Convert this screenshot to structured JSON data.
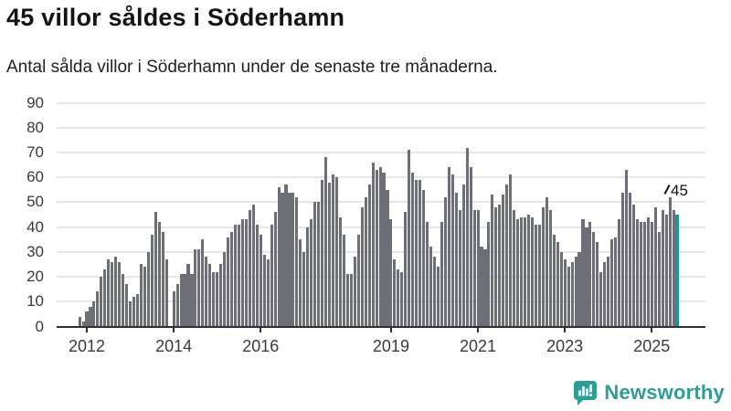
{
  "header": {
    "title": "45 villor såldes i Söderhamn",
    "subtitle": "Antal sålda villor i Söderhamn under de senaste tre månaderna."
  },
  "chart_data": {
    "type": "bar",
    "title": "45 villor såldes i Söderhamn",
    "subtitle": "Antal sålda villor i Söderhamn under de senaste tre månaderna.",
    "unit": "sålda villor (rullande 3 månader)",
    "start_month": "2011-11",
    "values": [
      4,
      2,
      6,
      8,
      10,
      14,
      20,
      23,
      27,
      26,
      28,
      26,
      21,
      17,
      10,
      12,
      13,
      25,
      24,
      30,
      37,
      46,
      42,
      38,
      27,
      0,
      14,
      17,
      21,
      21,
      25,
      21,
      31,
      31,
      35,
      28,
      25,
      22,
      22,
      25,
      30,
      36,
      38,
      41,
      41,
      43,
      43,
      47,
      49,
      41,
      37,
      29,
      27,
      41,
      46,
      56,
      54,
      57,
      54,
      54,
      52,
      35,
      30,
      40,
      43,
      50,
      50,
      59,
      68,
      58,
      61,
      60,
      44,
      37,
      21,
      21,
      28,
      37,
      48,
      52,
      57,
      66,
      63,
      64,
      62,
      55,
      43,
      27,
      23,
      22,
      46,
      71,
      62,
      59,
      59,
      55,
      42,
      32,
      28,
      24,
      42,
      52,
      64,
      61,
      54,
      47,
      57,
      72,
      64,
      47,
      47,
      32,
      31,
      42,
      53,
      48,
      49,
      53,
      57,
      61,
      47,
      43,
      44,
      44,
      45,
      44,
      41,
      41,
      48,
      52,
      47,
      37,
      34,
      30,
      27,
      24,
      26,
      28,
      30,
      43,
      40,
      42,
      38,
      34,
      22,
      26,
      28,
      35,
      36,
      43,
      54,
      63,
      54,
      49,
      43,
      42,
      42,
      44,
      42,
      48,
      38,
      47,
      45,
      52,
      47,
      45
    ],
    "highlight_index": 165,
    "highlight_month": "2025-08",
    "highlight_value_label": "45",
    "y_ticks": [
      0,
      10,
      20,
      30,
      40,
      50,
      60,
      70,
      80,
      90
    ],
    "ylim": [
      0,
      95
    ],
    "x_ticks": [
      {
        "label": "2012",
        "month_index": 2
      },
      {
        "label": "2014",
        "month_index": 26
      },
      {
        "label": "2016",
        "month_index": 50
      },
      {
        "label": "2019",
        "month_index": 86
      },
      {
        "label": "2021",
        "month_index": 110
      },
      {
        "label": "2023",
        "month_index": 134
      },
      {
        "label": "2025",
        "month_index": 158
      }
    ],
    "grid": true,
    "legend": "none",
    "colors": {
      "bar": "#6e6e76",
      "highlight": "#1a9694",
      "gridline": "#e6e6e6",
      "axis": "#2f2f2f"
    }
  },
  "branding": {
    "logo_text": "Newsworthy",
    "logo_icon": "bar-chart-speech-bubble-icon",
    "color": "#2d9d96"
  }
}
